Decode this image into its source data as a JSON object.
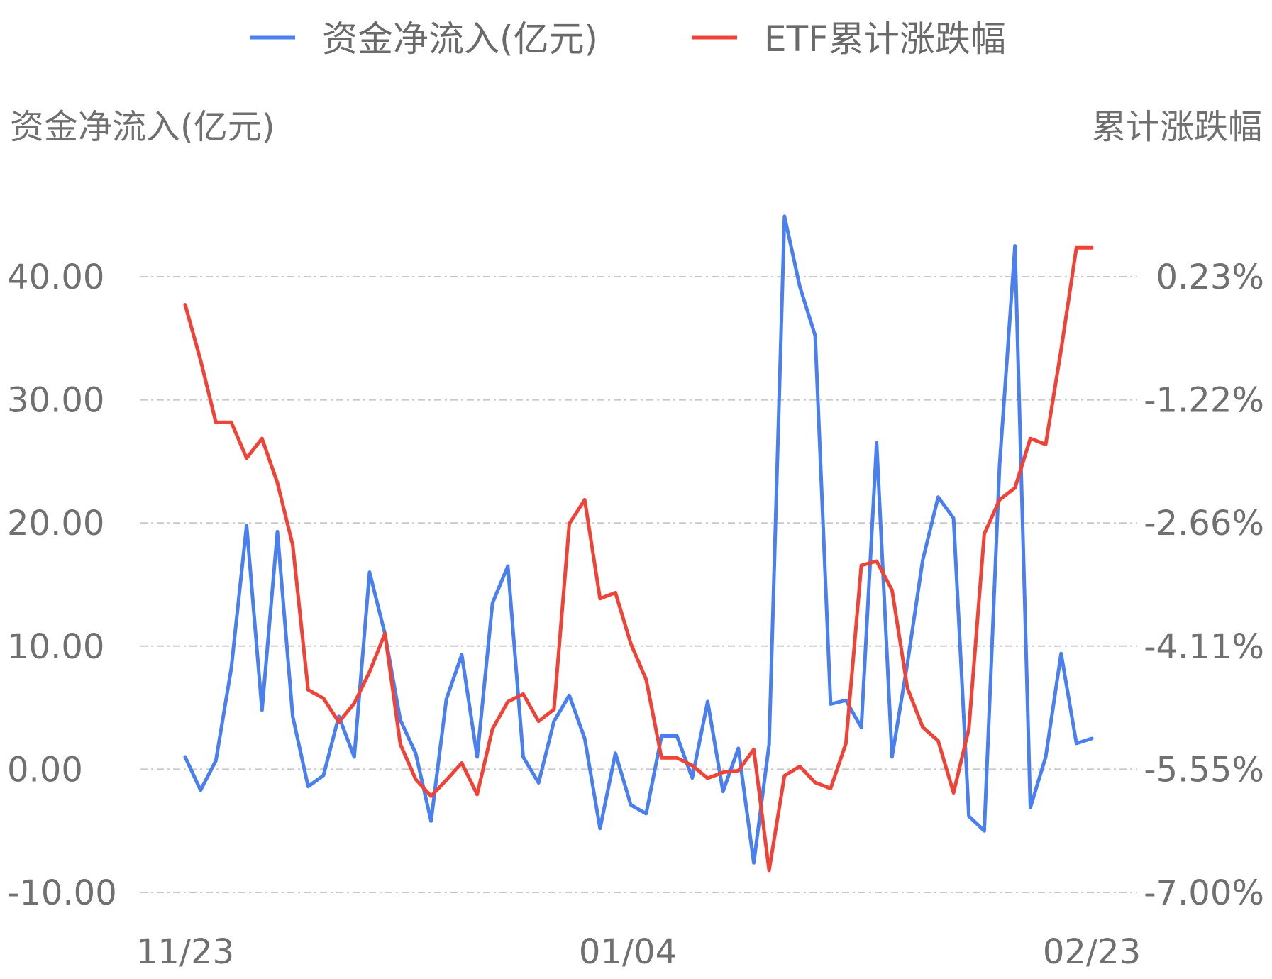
{
  "legend": [
    {
      "label": "资金净流入(亿元)",
      "color": "#4a7ff0"
    },
    {
      "label": "ETF累计涨跌幅",
      "color": "#f04338"
    }
  ],
  "axes": {
    "left_title": "资金净流入(亿元)",
    "right_title": "累计涨跌幅"
  },
  "chart_data": {
    "type": "line",
    "left_axis": {
      "ticks": [
        "40.00",
        "30.00",
        "20.00",
        "10.00",
        "0.00",
        "-10.00"
      ],
      "range": [
        -10,
        40
      ]
    },
    "right_axis": {
      "ticks": [
        "0.23%",
        "-1.22%",
        "-2.66%",
        "-4.11%",
        "-5.55%",
        "-7.00%"
      ],
      "range": [
        -7.0,
        0.23
      ]
    },
    "x_ticks": [
      "11/23",
      "01/04",
      "02/23"
    ],
    "grid": true,
    "legend_position": "top-center",
    "series": [
      {
        "name": "资金净流入(亿元)",
        "axis": "left",
        "color": "#4a7ff0",
        "values": [
          1.0,
          -1.7,
          0.7,
          8.2,
          19.8,
          4.8,
          19.3,
          4.3,
          -1.4,
          -0.5,
          4.3,
          1.0,
          16.0,
          11.0,
          4.0,
          1.3,
          -4.2,
          5.7,
          9.3,
          1.0,
          13.5,
          16.5,
          1.0,
          -1.1,
          3.9,
          6.0,
          2.5,
          -4.8,
          1.3,
          -2.9,
          -3.6,
          2.7,
          2.7,
          -0.7,
          5.5,
          -1.8,
          1.7,
          -7.6,
          2.0,
          44.9,
          39.2,
          35.2,
          5.3,
          5.6,
          3.4,
          26.5,
          1.0,
          8.6,
          17.0,
          22.1,
          20.4,
          -3.8,
          -5.0,
          24.7,
          42.5,
          -3.1,
          1.0,
          9.4,
          2.1,
          2.5
        ]
      },
      {
        "name": "ETF累计涨跌幅",
        "axis": "right",
        "color": "#f04338",
        "values": [
          -0.1,
          -0.75,
          -1.48,
          -1.48,
          -1.9,
          -1.67,
          -2.19,
          -2.92,
          -4.62,
          -4.72,
          -5.0,
          -4.78,
          -4.41,
          -3.96,
          -5.26,
          -5.67,
          -5.87,
          -5.68,
          -5.48,
          -5.85,
          -5.08,
          -4.76,
          -4.67,
          -4.99,
          -4.85,
          -2.67,
          -2.39,
          -3.55,
          -3.48,
          -4.08,
          -4.5,
          -5.42,
          -5.42,
          -5.51,
          -5.66,
          -5.59,
          -5.57,
          -5.32,
          -6.74,
          -5.63,
          -5.52,
          -5.71,
          -5.78,
          -5.25,
          -3.16,
          -3.11,
          -3.45,
          -4.6,
          -5.06,
          -5.22,
          -5.83,
          -5.08,
          -2.79,
          -2.39,
          -2.25,
          -1.67,
          -1.74,
          -0.63,
          0.57,
          0.57
        ]
      }
    ]
  }
}
